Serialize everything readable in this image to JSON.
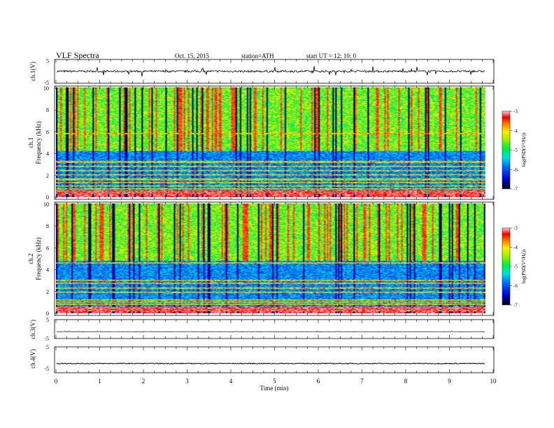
{
  "header": {
    "title": "VLF  Spectra",
    "date": "Oct. 15, 2015",
    "station": "station=ATH",
    "start": "start  UT =   12: 10: 0"
  },
  "chart_data": [
    {
      "type": "line",
      "name": "ch1-waveform",
      "ylabel": "ch.1(V)",
      "ylim": [
        -5,
        5
      ],
      "yticks": [
        "5",
        "-5"
      ],
      "baseline": 0,
      "noise": 0.45,
      "spike_amp": 2.2
    },
    {
      "type": "heatmap",
      "name": "ch1-spectrogram",
      "ylabel_channel": "ch.1",
      "ylabel": "Frequency (kHz)",
      "ylim": [
        0,
        10
      ],
      "yticks": [
        "0",
        "2",
        "4",
        "6",
        "8",
        "10"
      ],
      "colorbar": {
        "label": "log(PSD(V²/Hz))",
        "range": [
          -7,
          -3
        ],
        "ticks": [
          "-3",
          "-4",
          "-5",
          "-6",
          "-7"
        ]
      },
      "lines_khz": [
        0.35,
        0.55,
        0.75,
        1.0,
        1.3,
        1.6,
        2.0,
        2.4,
        2.8,
        3.2,
        5.8
      ],
      "low_band_top_khz": 4.2,
      "sferic_density": 0.16
    },
    {
      "type": "heatmap",
      "name": "ch2-spectrogram",
      "ylabel_channel": "ch.2",
      "ylabel": "Frequency (kHz)",
      "ylim": [
        0,
        10
      ],
      "yticks": [
        "0",
        "2",
        "4",
        "6",
        "8",
        "10"
      ],
      "colorbar": {
        "label": "log(PSD(V²/Hz))",
        "range": [
          -7,
          -3
        ],
        "ticks": [
          "-3",
          "-4",
          "-5",
          "-6",
          "-7"
        ]
      },
      "lines_khz": [
        0.2,
        0.45,
        0.8,
        1.0,
        1.2,
        1.9,
        2.3,
        2.7,
        3.0,
        4.6
      ],
      "low_band_top_khz": 4.8,
      "sferic_density": 0.2
    },
    {
      "type": "line",
      "name": "ch3-waveform",
      "ylabel": "ch.3(V)",
      "ylim": [
        -5,
        5
      ],
      "yticks": [
        "5",
        "-5"
      ],
      "baseline": -1.5,
      "noise": 0.05,
      "spike_amp": 0.3
    },
    {
      "type": "line",
      "name": "ch4-waveform",
      "ylabel": "ch.4(V)",
      "ylim": [
        -5,
        5
      ],
      "yticks": [
        "5",
        "-5"
      ],
      "baseline": -1.5,
      "noise": 0.18,
      "spike_amp": 0.0
    }
  ],
  "x_axis": {
    "label": "Time  (min)",
    "range": [
      0,
      10
    ],
    "ticks": [
      "0",
      "1",
      "2",
      "3",
      "4",
      "5",
      "6",
      "7",
      "8",
      "9",
      "10"
    ],
    "data_end": 9.82
  }
}
